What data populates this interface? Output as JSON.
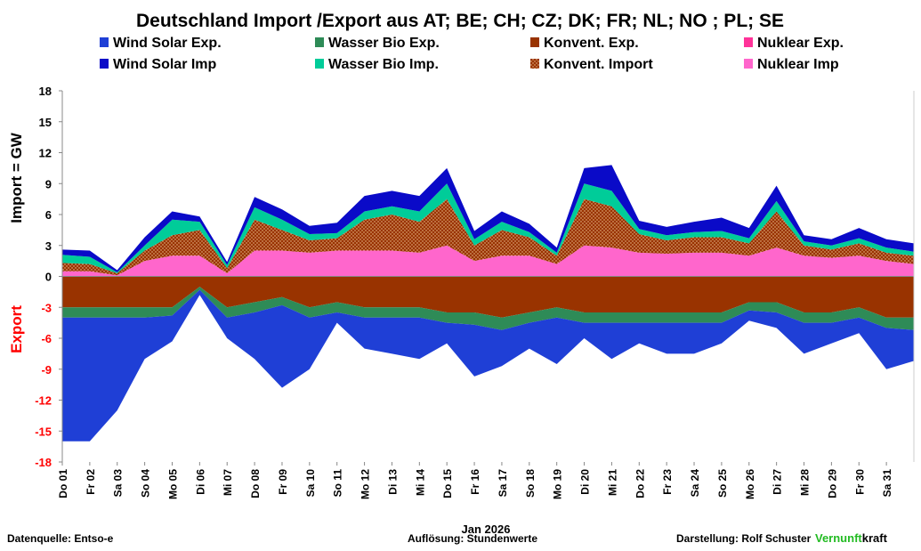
{
  "chart_data": {
    "type": "area",
    "title": "Deutschland Import /Export  aus AT;  BE;  CH;  CZ;  DK;  FR;  NL;  NO ;  PL;  SE",
    "ylabel_import": "Import    = GW",
    "ylabel_export": "Export",
    "xlabel": "Jan 2026",
    "ylim": [
      -18,
      18
    ],
    "yticks": [
      18,
      15,
      12,
      9,
      6,
      3,
      0,
      -3,
      -6,
      -9,
      -12,
      -15,
      -18
    ],
    "grid": false,
    "legend_position": "top",
    "x_tick_labels": [
      "Do 01",
      "Fr 02",
      "Sa 03",
      "So 04",
      "Mo 05",
      "Di 06",
      "Mi 07",
      "Do 08",
      "Fr 09",
      "Sa 10",
      "So 11",
      "Mo 12",
      "Di 13",
      "Mi 14",
      "Do 15",
      "Fr 16",
      "Sa 17",
      "So 18",
      "Mo 19",
      "Di 20",
      "Mi 21",
      "Do 22",
      "Fr 23",
      "Sa 24",
      "So 25",
      "Mo 26",
      "Di 27",
      "Mi 28",
      "Do 29",
      "Fr 30",
      "Sa 31"
    ],
    "x_days": [
      1,
      2,
      3,
      4,
      5,
      6,
      7,
      8,
      9,
      10,
      11,
      12,
      13,
      14,
      15,
      16,
      17,
      18,
      19,
      20,
      21,
      22,
      23,
      24,
      25,
      26,
      27,
      28,
      29,
      30,
      31,
      32
    ],
    "import_series": [
      {
        "name": "Nuklear Imp",
        "color": "#ff66cc",
        "values": [
          0.5,
          0.5,
          0.1,
          1.5,
          2,
          2,
          0.3,
          2.5,
          2.5,
          2.3,
          2.5,
          2.5,
          2.5,
          2.3,
          3,
          1.5,
          2,
          2,
          1.2,
          3,
          2.8,
          2.3,
          2.2,
          2.3,
          2.3,
          2,
          2.8,
          2,
          1.8,
          2,
          1.5,
          1.2
        ]
      },
      {
        "name": "Konvent. Import",
        "color": "#993300",
        "pattern": true,
        "values": [
          0.8,
          0.7,
          0.2,
          1,
          2,
          2.5,
          0.5,
          3,
          2,
          1.2,
          1.2,
          3,
          3.5,
          3,
          4.5,
          1.5,
          2.5,
          1.8,
          0.8,
          4.5,
          4,
          1.8,
          1.3,
          1.5,
          1.5,
          1.2,
          3.5,
          1,
          0.8,
          1.2,
          0.8,
          0.8
        ]
      },
      {
        "name": "Wasser Bio Imp.",
        "color": "#00cc99",
        "values": [
          0.8,
          0.7,
          0.1,
          0.5,
          1.5,
          0.8,
          0.3,
          1.2,
          1,
          0.6,
          0.5,
          0.8,
          0.8,
          1,
          1.5,
          0.6,
          0.8,
          0.5,
          0.3,
          1.5,
          1.5,
          0.5,
          0.5,
          0.5,
          0.6,
          0.5,
          1,
          0.4,
          0.4,
          0.5,
          0.5,
          0.4
        ]
      },
      {
        "name": "Wind Solar Imp",
        "color": "#0a0ac8",
        "values": [
          0.5,
          0.6,
          0.2,
          0.8,
          0.8,
          0.5,
          0.3,
          1,
          1,
          0.8,
          1,
          1.5,
          1.5,
          1.5,
          1.5,
          0.8,
          1,
          0.8,
          0.5,
          1.5,
          2.5,
          0.8,
          0.8,
          1,
          1.3,
          1,
          1.5,
          0.6,
          0.6,
          1,
          0.8,
          0.8
        ]
      }
    ],
    "export_series": [
      {
        "name": "Nuklear Exp.",
        "color": "#ff3399",
        "values": [
          0,
          0,
          0,
          0,
          0,
          0,
          0,
          0,
          0,
          0,
          0,
          0,
          0,
          0,
          0,
          0,
          0,
          0,
          0,
          0,
          0,
          0,
          0,
          0,
          0,
          0,
          0,
          0,
          0,
          0,
          0,
          0
        ]
      },
      {
        "name": "Konvent. Exp.",
        "color": "#993300",
        "values": [
          -3,
          -3,
          -3,
          -3,
          -3,
          -1,
          -3,
          -2.5,
          -2,
          -3,
          -2.5,
          -3,
          -3,
          -3,
          -3.5,
          -3.5,
          -4,
          -3.5,
          -3,
          -3.5,
          -3.5,
          -3.5,
          -3.5,
          -3.5,
          -3.5,
          -2.5,
          -2.5,
          -3.5,
          -3.5,
          -3,
          -4,
          -4
        ]
      },
      {
        "name": "Wasser Bio Exp.",
        "color": "#2e8b57",
        "values": [
          -1,
          -1,
          -1,
          -1,
          -0.8,
          -0.3,
          -1,
          -1,
          -0.8,
          -1,
          -1,
          -1,
          -1,
          -1,
          -1,
          -1.2,
          -1.2,
          -1,
          -1,
          -1,
          -1,
          -1,
          -1,
          -1,
          -1,
          -0.8,
          -1,
          -1,
          -1,
          -1,
          -1,
          -1.2
        ]
      },
      {
        "name": "Wind Solar Exp.",
        "color": "#1f3fd6",
        "values": [
          -12,
          -12,
          -9,
          -4,
          -2.5,
          -0.5,
          -2,
          -4.5,
          -8,
          -5,
          -1,
          -3,
          -3.5,
          -4,
          -2,
          -5,
          -3.5,
          -2.5,
          -4.5,
          -1.5,
          -3.5,
          -2,
          -3,
          -3,
          -2,
          -1,
          -1.5,
          -3,
          -2,
          -1.5,
          -4,
          -3
        ]
      }
    ],
    "legend": [
      {
        "label": "Wind Solar Exp.",
        "color": "#1f3fd6"
      },
      {
        "label": "Wasser Bio Exp.",
        "color": "#2e8b57"
      },
      {
        "label": "Konvent. Exp.",
        "color": "#993300"
      },
      {
        "label": "Nuklear Exp.",
        "color": "#ff3399"
      },
      {
        "label": "Wind Solar Imp",
        "color": "#0a0ac8"
      },
      {
        "label": "Wasser Bio Imp.",
        "color": "#00cc99"
      },
      {
        "label": "Konvent. Import",
        "color": "#993300"
      },
      {
        "label": "Nuklear Imp",
        "color": "#ff66cc"
      }
    ]
  },
  "footer": {
    "source": "Datenquelle: Entso-e",
    "resolution": "Auflösung: Stundenwerte",
    "author": "Darstellung:  Rolf Schuster",
    "brand_green": "Vernunft",
    "brand_rest": "kraft"
  }
}
